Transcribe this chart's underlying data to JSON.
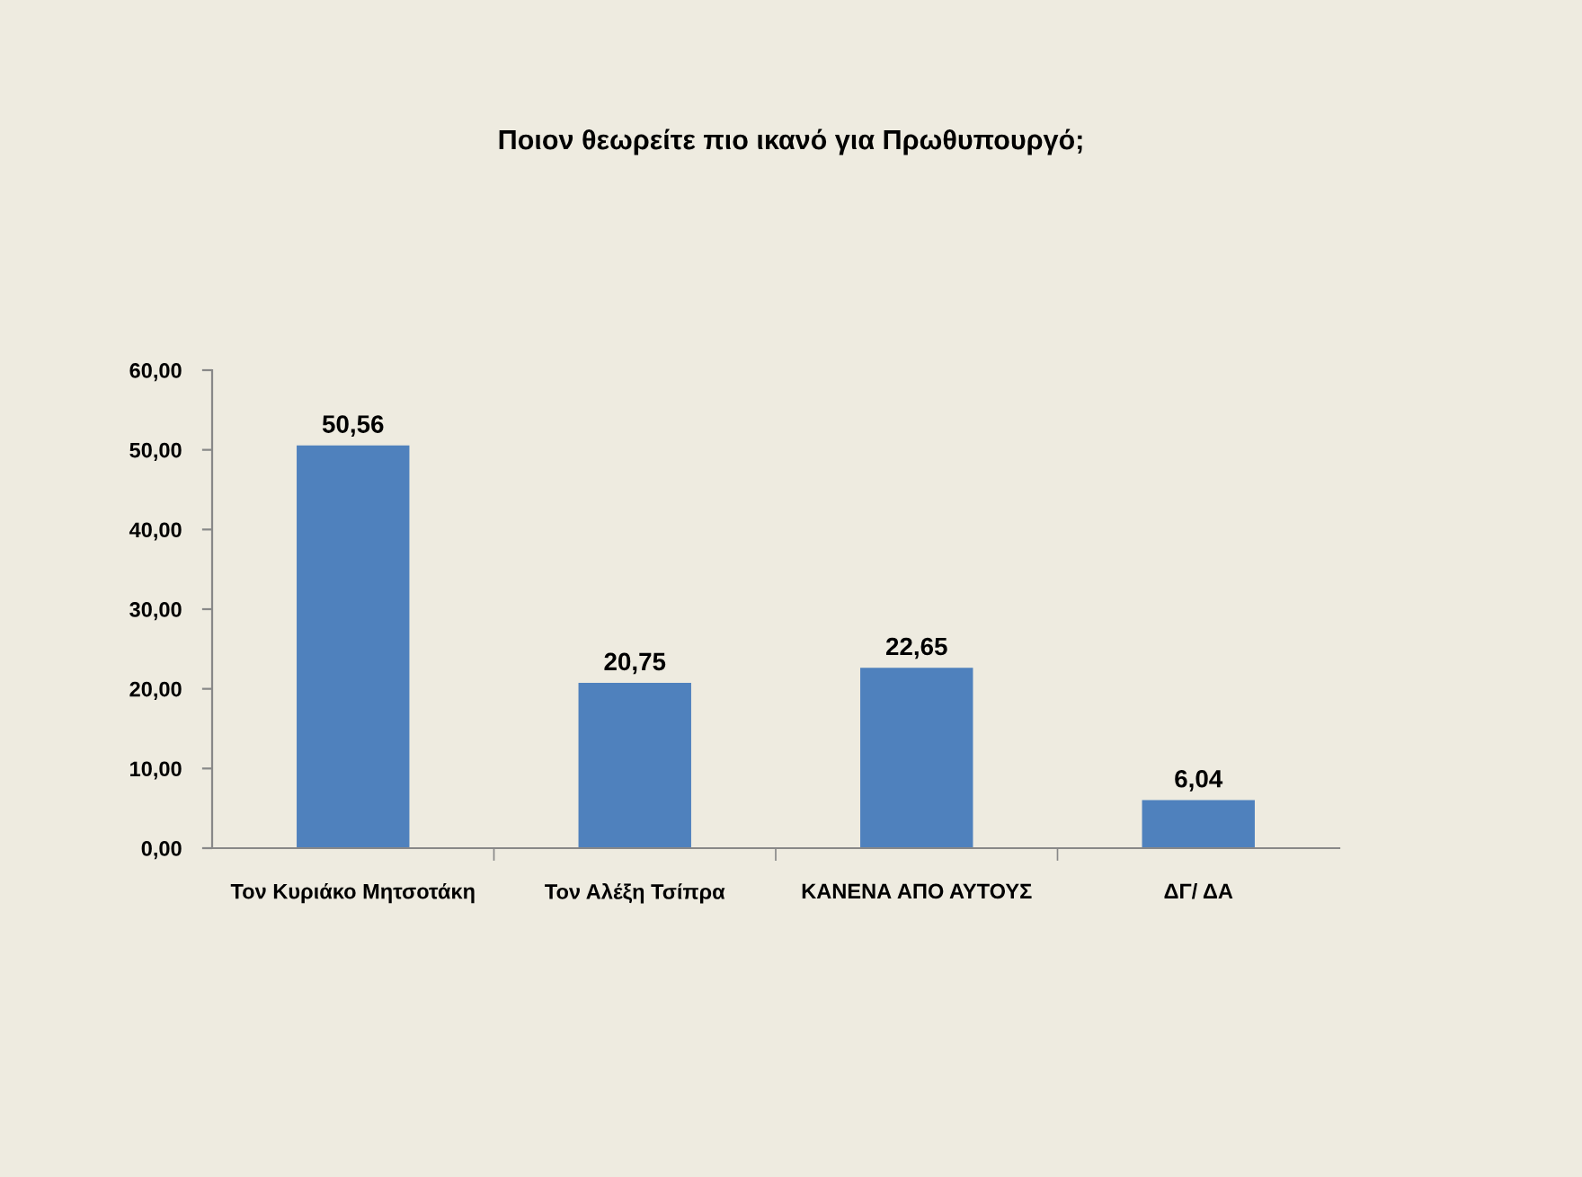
{
  "chart_data": {
    "type": "bar",
    "title": "Ποιον θεωρείτε πιο ικανό για Πρωθυπουργό;",
    "categories": [
      "Τον Κυριάκο Μητσοτάκη",
      "Τον Αλέξη Τσίπρα",
      "ΚΑΝΕΝΑ ΑΠΟ ΑΥΤΟΥΣ",
      "ΔΓ/ ΔΑ"
    ],
    "values": [
      50.56,
      20.75,
      22.65,
      6.04
    ],
    "value_labels": [
      "50,56",
      "20,75",
      "22,65",
      "6,04"
    ],
    "color": "#4f81bd",
    "ylim": [
      0,
      60
    ],
    "yticks": [
      {
        "value": 0,
        "label": "0,00"
      },
      {
        "value": 10,
        "label": "10,00"
      },
      {
        "value": 20,
        "label": "20,00"
      },
      {
        "value": 30,
        "label": "30,00"
      },
      {
        "value": 40,
        "label": "40,00"
      },
      {
        "value": 50,
        "label": "50,00"
      },
      {
        "value": 60,
        "label": "60,00"
      }
    ],
    "grid": false,
    "legend": false
  }
}
